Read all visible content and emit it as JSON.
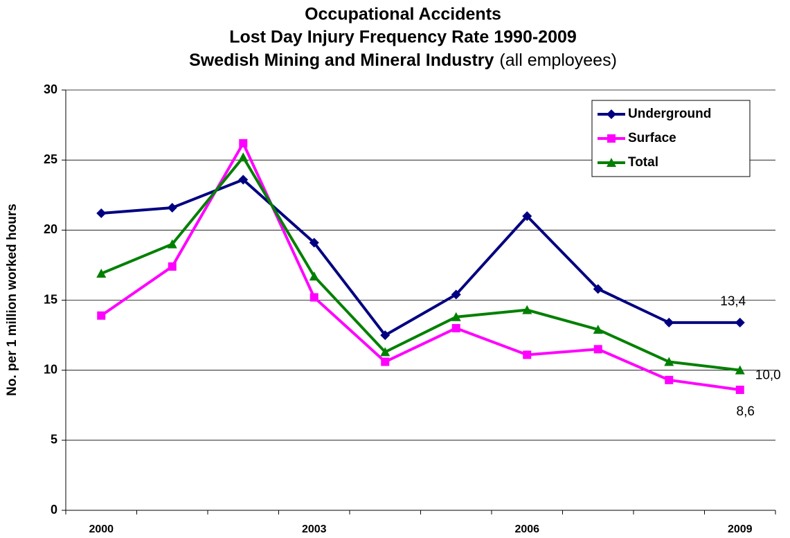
{
  "chart_data": {
    "type": "line",
    "title": [
      "Occupational Accidents",
      "Lost Day Injury Frequency Rate 1990-2009",
      "Swedish Mining and Mineral Industry"
    ],
    "subtitle": "(all employees)",
    "y_label": "No. per 1 million worked hours",
    "categories": [
      "2000",
      null,
      null,
      "2003",
      null,
      null,
      "2006",
      null,
      null,
      "2009"
    ],
    "series": [
      {
        "name": "Underground",
        "color": "#000080",
        "marker": "diamond",
        "values": [
          21.2,
          21.6,
          23.6,
          19.1,
          12.5,
          15.4,
          21.0,
          15.8,
          13.4,
          13.4
        ],
        "value_labels": [
          null,
          null,
          null,
          null,
          null,
          null,
          null,
          null,
          null,
          "13,4"
        ]
      },
      {
        "name": "Surface",
        "color": "#ff00ff",
        "marker": "square",
        "values": [
          13.9,
          17.4,
          26.2,
          15.2,
          10.6,
          13.0,
          11.1,
          11.5,
          9.3,
          8.6
        ],
        "value_labels": [
          null,
          null,
          null,
          null,
          null,
          null,
          null,
          null,
          null,
          "8,6"
        ]
      },
      {
        "name": "Total",
        "color": "#008000",
        "marker": "triangle",
        "values": [
          16.9,
          19.0,
          25.2,
          16.7,
          11.3,
          13.8,
          14.3,
          12.9,
          10.6,
          10.0
        ],
        "value_labels": [
          null,
          null,
          null,
          null,
          null,
          null,
          null,
          null,
          null,
          "10,0"
        ]
      }
    ],
    "ylim": [
      0,
      30
    ],
    "yticks": [
      0,
      5,
      10,
      15,
      20,
      25,
      30
    ],
    "grid": true,
    "legend": "top-right"
  }
}
